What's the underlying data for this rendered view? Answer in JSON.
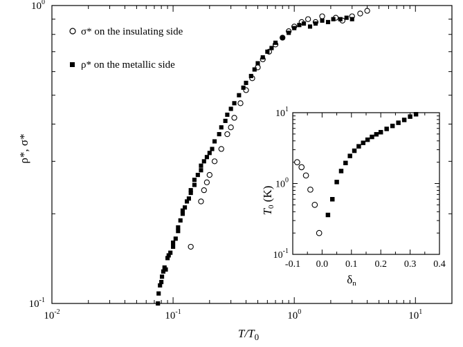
{
  "chart_data": [
    {
      "type": "scatter",
      "title": "",
      "xlabel": "T/T",
      "xlabel_sub": "0",
      "ylabel": "ρ*, σ*",
      "xscale": "log",
      "yscale": "log",
      "xlim": [
        0.01,
        20
      ],
      "ylim": [
        0.1,
        1
      ],
      "x_ticks": [
        {
          "value": 0.01,
          "base": "10",
          "exp": "-2"
        },
        {
          "value": 0.1,
          "base": "10",
          "exp": "-1"
        },
        {
          "value": 1,
          "base": "10",
          "exp": "0"
        },
        {
          "value": 10,
          "base": "10",
          "exp": "1"
        }
      ],
      "y_ticks": [
        {
          "value": 0.1,
          "base": "10",
          "exp": "-1"
        },
        {
          "value": 1,
          "base": "10",
          "exp": "0"
        }
      ],
      "grid": false,
      "legend_position": "top-left",
      "series": [
        {
          "name": "σ* on the insulating side",
          "marker": "open-circle",
          "color": "#000000",
          "points": [
            [
              0.14,
              0.155
            ],
            [
              0.17,
              0.22
            ],
            [
              0.18,
              0.24
            ],
            [
              0.19,
              0.255
            ],
            [
              0.2,
              0.27
            ],
            [
              0.22,
              0.3
            ],
            [
              0.25,
              0.33
            ],
            [
              0.28,
              0.37
            ],
            [
              0.3,
              0.39
            ],
            [
              0.32,
              0.42
            ],
            [
              0.36,
              0.47
            ],
            [
              0.4,
              0.52
            ],
            [
              0.45,
              0.57
            ],
            [
              0.5,
              0.62
            ],
            [
              0.55,
              0.66
            ],
            [
              0.62,
              0.7
            ],
            [
              0.7,
              0.74
            ],
            [
              0.8,
              0.78
            ],
            [
              0.9,
              0.82
            ],
            [
              1.0,
              0.85
            ],
            [
              1.15,
              0.88
            ],
            [
              1.3,
              0.9
            ],
            [
              1.5,
              0.88
            ],
            [
              1.7,
              0.92
            ],
            [
              2.2,
              0.91
            ],
            [
              2.5,
              0.89
            ],
            [
              3.0,
              0.92
            ],
            [
              3.5,
              0.94
            ],
            [
              4.0,
              0.96
            ]
          ]
        },
        {
          "name": "ρ* on the metallic side",
          "marker": "filled-square",
          "color": "#000000",
          "points": [
            [
              0.075,
              0.1
            ],
            [
              0.076,
              0.108
            ],
            [
              0.078,
              0.115
            ],
            [
              0.08,
              0.118
            ],
            [
              0.081,
              0.123
            ],
            [
              0.083,
              0.128
            ],
            [
              0.085,
              0.132
            ],
            [
              0.087,
              0.13
            ],
            [
              0.09,
              0.142
            ],
            [
              0.092,
              0.145
            ],
            [
              0.095,
              0.148
            ],
            [
              0.1,
              0.155
            ],
            [
              0.1,
              0.16
            ],
            [
              0.105,
              0.165
            ],
            [
              0.11,
              0.175
            ],
            [
              0.11,
              0.18
            ],
            [
              0.115,
              0.19
            ],
            [
              0.12,
              0.2
            ],
            [
              0.12,
              0.205
            ],
            [
              0.125,
              0.21
            ],
            [
              0.13,
              0.22
            ],
            [
              0.135,
              0.225
            ],
            [
              0.14,
              0.235
            ],
            [
              0.14,
              0.24
            ],
            [
              0.15,
              0.25
            ],
            [
              0.15,
              0.26
            ],
            [
              0.16,
              0.27
            ],
            [
              0.17,
              0.28
            ],
            [
              0.17,
              0.29
            ],
            [
              0.18,
              0.3
            ],
            [
              0.19,
              0.31
            ],
            [
              0.2,
              0.32
            ],
            [
              0.21,
              0.33
            ],
            [
              0.22,
              0.35
            ],
            [
              0.24,
              0.37
            ],
            [
              0.25,
              0.39
            ],
            [
              0.27,
              0.41
            ],
            [
              0.28,
              0.43
            ],
            [
              0.3,
              0.45
            ],
            [
              0.32,
              0.47
            ],
            [
              0.35,
              0.5
            ],
            [
              0.38,
              0.53
            ],
            [
              0.4,
              0.55
            ],
            [
              0.44,
              0.58
            ],
            [
              0.47,
              0.61
            ],
            [
              0.5,
              0.64
            ],
            [
              0.55,
              0.67
            ],
            [
              0.6,
              0.7
            ],
            [
              0.65,
              0.72
            ],
            [
              0.7,
              0.75
            ],
            [
              0.8,
              0.78
            ],
            [
              0.9,
              0.81
            ],
            [
              1.0,
              0.84
            ],
            [
              1.1,
              0.86
            ],
            [
              1.2,
              0.87
            ],
            [
              1.35,
              0.85
            ],
            [
              1.5,
              0.87
            ],
            [
              1.7,
              0.89
            ],
            [
              1.9,
              0.88
            ],
            [
              2.1,
              0.9
            ],
            [
              2.4,
              0.9
            ],
            [
              2.7,
              0.91
            ],
            [
              3.0,
              0.9
            ]
          ]
        }
      ]
    },
    {
      "type": "scatter",
      "title": "",
      "xlabel": "δ",
      "xlabel_sub": "n",
      "ylabel": "T",
      "ylabel_sub": "0",
      "ylabel_unit": " (K)",
      "xscale": "linear",
      "yscale": "log",
      "xlim": [
        -0.1,
        0.4
      ],
      "ylim": [
        0.1,
        10
      ],
      "x_ticks": [
        "-0.1",
        "0.0",
        "0.1",
        "0.2",
        "0.3",
        "0.4"
      ],
      "y_ticks": [
        {
          "value": 0.1,
          "base": "10",
          "exp": "-1"
        },
        {
          "value": 1,
          "base": "10",
          "exp": "0"
        },
        {
          "value": 10,
          "base": "10",
          "exp": "1"
        }
      ],
      "grid": false,
      "series": [
        {
          "marker": "open-circle",
          "color": "#000000",
          "points": [
            [
              -0.085,
              2.0
            ],
            [
              -0.07,
              1.7
            ],
            [
              -0.055,
              1.3
            ],
            [
              -0.04,
              0.82
            ],
            [
              -0.025,
              0.5
            ],
            [
              -0.01,
              0.2
            ]
          ]
        },
        {
          "marker": "filled-square",
          "color": "#000000",
          "points": [
            [
              0.02,
              0.36
            ],
            [
              0.035,
              0.6
            ],
            [
              0.05,
              1.05
            ],
            [
              0.065,
              1.5
            ],
            [
              0.08,
              1.95
            ],
            [
              0.095,
              2.45
            ],
            [
              0.11,
              2.9
            ],
            [
              0.125,
              3.35
            ],
            [
              0.14,
              3.75
            ],
            [
              0.155,
              4.15
            ],
            [
              0.17,
              4.55
            ],
            [
              0.185,
              4.95
            ],
            [
              0.2,
              5.3
            ],
            [
              0.22,
              5.9
            ],
            [
              0.24,
              6.5
            ],
            [
              0.26,
              7.2
            ],
            [
              0.28,
              7.9
            ],
            [
              0.3,
              8.8
            ],
            [
              0.32,
              9.5
            ]
          ]
        }
      ]
    }
  ]
}
